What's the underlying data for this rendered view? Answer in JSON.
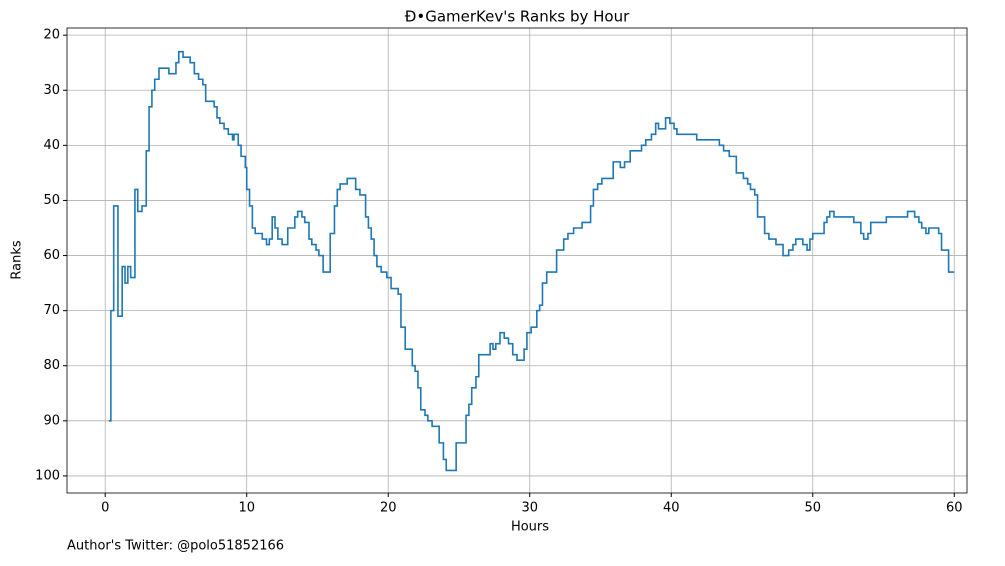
{
  "chart_data": {
    "type": "step",
    "title": "Đ•GamerKev's Ranks by Hour",
    "xlabel": "Hours",
    "ylabel": "Ranks",
    "footer": "Author's Twitter: @polo51852166",
    "color": "#1f77b4",
    "grid": true,
    "y_inverted": true,
    "xlim": [
      -2.7,
      60.9
    ],
    "ylim": [
      103.1,
      18.7
    ],
    "xticks": [
      0,
      10,
      20,
      30,
      40,
      50,
      60
    ],
    "yticks": [
      20,
      30,
      40,
      50,
      60,
      70,
      80,
      90,
      100
    ],
    "x": [
      0.25,
      0.4,
      0.6,
      0.9,
      1.2,
      1.4,
      1.6,
      1.8,
      2.1,
      2.3,
      2.6,
      2.9,
      3.1,
      3.3,
      3.5,
      3.8,
      4.5,
      5.0,
      5.2,
      5.5,
      6.0,
      6.3,
      6.6,
      6.9,
      7.1,
      7.7,
      7.9,
      8.1,
      8.4,
      8.7,
      9.0,
      9.1,
      9.4,
      9.6,
      9.9,
      10.0,
      10.2,
      10.4,
      10.6,
      11.1,
      11.4,
      11.6,
      11.8,
      12.0,
      12.2,
      12.5,
      12.9,
      13.4,
      13.6,
      13.9,
      14.1,
      14.4,
      14.6,
      14.9,
      15.1,
      15.4,
      15.9,
      16.2,
      16.4,
      16.6,
      17.1,
      17.7,
      18.0,
      18.4,
      18.6,
      18.8,
      19.0,
      19.2,
      19.5,
      19.9,
      20.2,
      20.7,
      20.9,
      21.2,
      21.7,
      21.9,
      22.1,
      22.3,
      22.6,
      22.8,
      23.1,
      23.6,
      23.9,
      24.1,
      24.8,
      25.5,
      25.7,
      25.9,
      26.2,
      26.4,
      27.2,
      27.4,
      27.6,
      27.9,
      28.2,
      28.5,
      28.8,
      29.1,
      29.6,
      29.8,
      30.1,
      30.5,
      30.7,
      30.9,
      31.2,
      31.9,
      32.4,
      32.7,
      33.1,
      33.7,
      34.3,
      34.5,
      34.8,
      35.1,
      35.9,
      36.4,
      36.7,
      37.1,
      37.9,
      38.2,
      38.6,
      38.9,
      39.1,
      39.6,
      39.9,
      40.2,
      40.4,
      41.8,
      43.4,
      43.7,
      44.1,
      44.6,
      45.1,
      45.4,
      45.6,
      45.9,
      46.1,
      46.6,
      46.9,
      47.4,
      47.9,
      48.3,
      48.6,
      48.8,
      49.3,
      49.6,
      49.8,
      50.0,
      50.8,
      51.0,
      51.2,
      51.5,
      52.9,
      53.4,
      53.6,
      53.9,
      54.1,
      55.2,
      56.7,
      57.2,
      57.5,
      57.7,
      58.0,
      58.2,
      58.9,
      59.1,
      59.6,
      60.0
    ],
    "values": [
      90,
      70,
      51,
      71,
      62,
      65,
      62,
      64,
      48,
      52,
      51,
      41,
      33,
      30,
      28,
      26,
      27,
      25,
      23,
      24,
      25,
      27,
      28,
      29,
      32,
      33,
      35,
      36,
      37,
      38,
      39,
      38,
      40,
      42,
      44,
      48,
      51,
      55,
      56,
      57,
      58,
      57,
      53,
      55,
      57,
      58,
      55,
      53,
      52,
      53,
      54,
      57,
      58,
      59,
      60,
      63,
      56,
      51,
      48,
      47,
      46,
      48,
      49,
      53,
      55,
      57,
      60,
      62,
      63,
      64,
      66,
      67,
      73,
      77,
      80,
      81,
      84,
      88,
      89,
      90,
      91,
      94,
      97,
      99,
      94,
      89,
      87,
      84,
      82,
      78,
      76,
      77,
      76,
      74,
      75,
      76,
      78,
      79,
      77,
      74,
      73,
      70,
      69,
      65,
      63,
      59,
      57,
      56,
      55,
      54,
      51,
      48,
      47,
      46,
      43,
      44,
      43,
      41,
      40,
      39,
      38,
      36,
      37,
      35,
      36,
      37,
      38,
      39,
      40,
      41,
      42,
      45,
      46,
      47,
      48,
      49,
      53,
      56,
      57,
      58,
      60,
      59,
      58,
      57,
      58,
      59,
      57,
      56,
      54,
      53,
      52,
      53,
      54,
      56,
      57,
      56,
      54,
      53,
      52,
      53,
      54,
      55,
      56,
      55,
      56,
      59,
      63,
      63
    ]
  }
}
